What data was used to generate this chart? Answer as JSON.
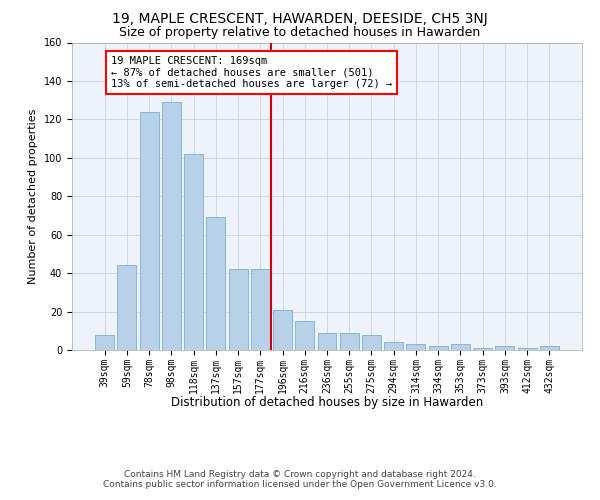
{
  "title": "19, MAPLE CRESCENT, HAWARDEN, DEESIDE, CH5 3NJ",
  "subtitle": "Size of property relative to detached houses in Hawarden",
  "xlabel": "Distribution of detached houses by size in Hawarden",
  "ylabel": "Number of detached properties",
  "bar_labels": [
    "39sqm",
    "59sqm",
    "78sqm",
    "98sqm",
    "118sqm",
    "137sqm",
    "157sqm",
    "177sqm",
    "196sqm",
    "216sqm",
    "236sqm",
    "255sqm",
    "275sqm",
    "294sqm",
    "314sqm",
    "334sqm",
    "353sqm",
    "373sqm",
    "393sqm",
    "412sqm",
    "432sqm"
  ],
  "bar_values": [
    8,
    44,
    124,
    129,
    102,
    69,
    42,
    42,
    21,
    15,
    9,
    9,
    8,
    4,
    3,
    2,
    3,
    1,
    2,
    1,
    2
  ],
  "bar_color": "#b8d0e8",
  "bar_edge_color": "#7aafd4",
  "vline_color": "#cc0000",
  "annotation_lines": [
    "19 MAPLE CRESCENT: 169sqm",
    "← 87% of detached houses are smaller (501)",
    "13% of semi-detached houses are larger (72) →"
  ],
  "ylim": [
    0,
    160
  ],
  "yticks": [
    0,
    20,
    40,
    60,
    80,
    100,
    120,
    140,
    160
  ],
  "grid_color": "#d0d8e8",
  "background_color": "#eef2fa",
  "footer_line1": "Contains HM Land Registry data © Crown copyright and database right 2024.",
  "footer_line2": "Contains public sector information licensed under the Open Government Licence v3.0.",
  "title_fontsize": 10,
  "subtitle_fontsize": 9,
  "xlabel_fontsize": 8.5,
  "ylabel_fontsize": 8,
  "tick_fontsize": 7,
  "annotation_fontsize": 7.5,
  "footer_fontsize": 6.5
}
